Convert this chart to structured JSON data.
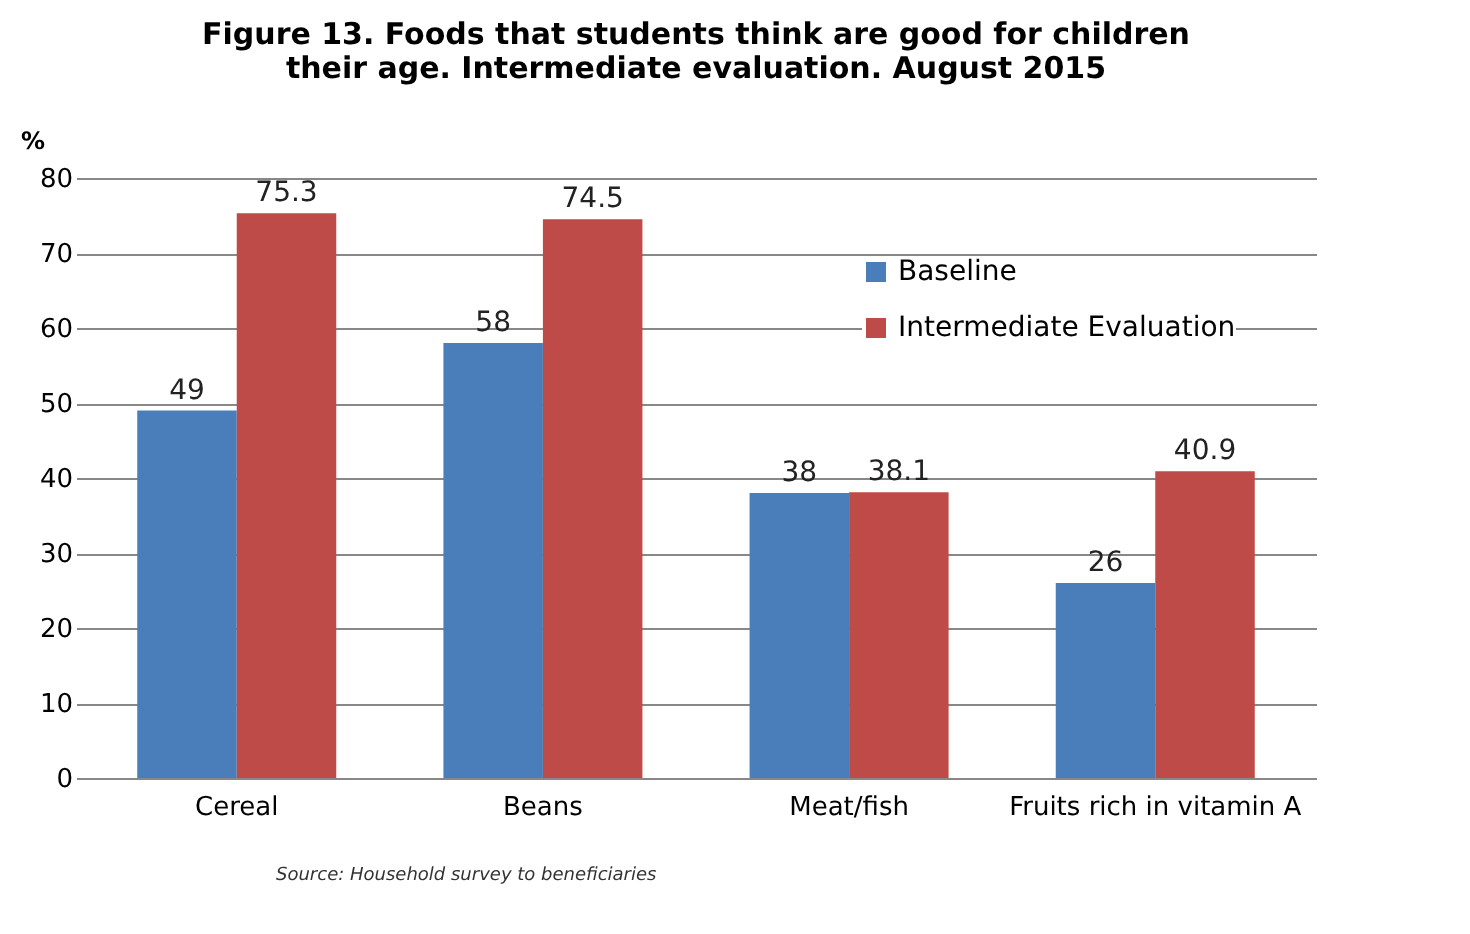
{
  "chart_data": {
    "type": "bar",
    "title": "Figure 13. Foods that students think are good for children their age. Intermediate evaluation. August 2015",
    "ylabel": "%",
    "categories": [
      "Cereal",
      "Beans",
      "Meat/fish",
      "Fruits rich in vitamin A"
    ],
    "series": [
      {
        "name": "Baseline",
        "color": "#4a7ebb",
        "values": [
          49,
          58,
          38,
          26
        ]
      },
      {
        "name": "Intermediate Evaluation",
        "color": "#be4b48",
        "values": [
          75.3,
          74.5,
          38.1,
          40.9
        ]
      }
    ],
    "ylim": [
      0,
      80
    ],
    "yticks": [
      0,
      10,
      20,
      30,
      40,
      50,
      60,
      70,
      80
    ],
    "grid": "y",
    "legend": "top right",
    "data_labels": true,
    "annotations": [
      "Source: Household survey to beneficiaries"
    ]
  }
}
